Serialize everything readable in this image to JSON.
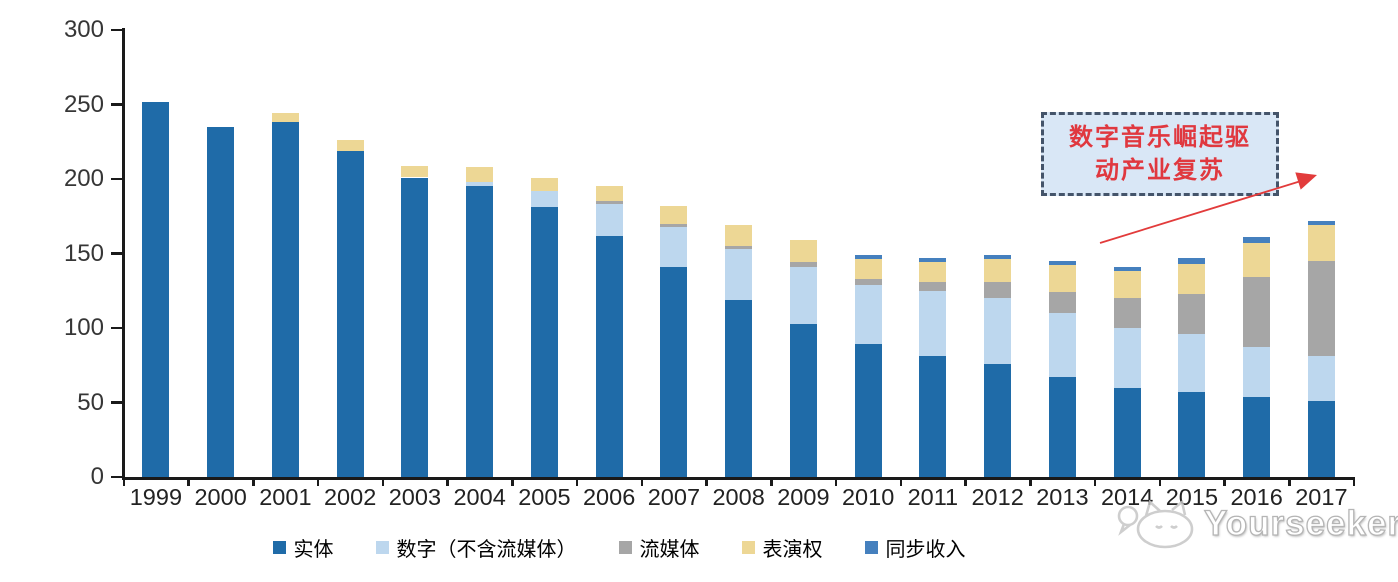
{
  "chart_data": {
    "type": "bar",
    "subtype": "stacked",
    "categories": [
      "1999",
      "2000",
      "2001",
      "2002",
      "2003",
      "2004",
      "2005",
      "2006",
      "2007",
      "2008",
      "2009",
      "2010",
      "2011",
      "2012",
      "2013",
      "2014",
      "2015",
      "2016",
      "2017"
    ],
    "series": [
      {
        "key": "physical",
        "name": "实体",
        "color": "#1F6BA8",
        "values": [
          252,
          235,
          238,
          219,
          201,
          195,
          181,
          162,
          141,
          119,
          103,
          89,
          81,
          76,
          67,
          60,
          57,
          54,
          51
        ]
      },
      {
        "key": "digital-excl-streaming",
        "name": "数字（不含流媒体）",
        "color": "#BDD7EE",
        "values": [
          0,
          0,
          0,
          0,
          0,
          3,
          11,
          21,
          27,
          34,
          38,
          40,
          44,
          44,
          43,
          40,
          39,
          33,
          30
        ]
      },
      {
        "key": "streaming",
        "name": "流媒体",
        "color": "#A6A6A6",
        "values": [
          0,
          0,
          0,
          0,
          0,
          0,
          0,
          2,
          2,
          2,
          3,
          4,
          6,
          11,
          14,
          20,
          27,
          47,
          64
        ]
      },
      {
        "key": "performance-rights",
        "name": "表演权",
        "color": "#EDD795",
        "values": [
          0,
          0,
          6,
          7,
          8,
          10,
          9,
          10,
          12,
          14,
          15,
          13,
          13,
          15,
          18,
          18,
          20,
          23,
          24
        ]
      },
      {
        "key": "sync-revenue",
        "name": "同步收入",
        "color": "#4580BE",
        "values": [
          0,
          0,
          0,
          0,
          0,
          0,
          0,
          0,
          0,
          0,
          0,
          3,
          3,
          3,
          3,
          3,
          4,
          4,
          3
        ]
      }
    ],
    "totals": [
      252,
      235,
      244,
      226,
      209,
      208,
      201,
      195,
      182,
      169,
      159,
      149,
      147,
      149,
      145,
      141,
      147,
      161,
      172
    ],
    "title": "",
    "xlabel": "",
    "ylabel": "",
    "ylim": [
      0,
      300
    ],
    "yticks": [
      0,
      50,
      100,
      150,
      200,
      250,
      300
    ],
    "grid": false,
    "legend_position": "bottom"
  },
  "annotation": {
    "line1": "数字音乐崛起驱",
    "line2": "动产业复苏",
    "text_color": "#E0383F",
    "box_fill": "#D9E7F6",
    "box_border": "#44546A",
    "arrow_color": "#E23B3B"
  },
  "watermark": {
    "text": "Yourseeker"
  }
}
